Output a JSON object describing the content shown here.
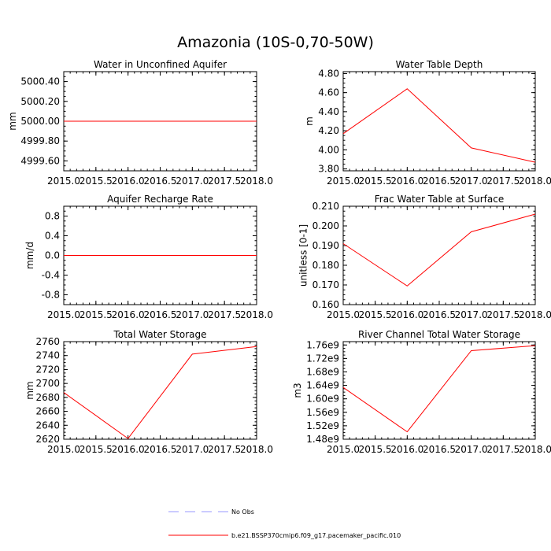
{
  "figure": {
    "title": "Amazonia (10S-0,70-50W)"
  },
  "legend": [
    {
      "label": "No Obs",
      "color": "#9999ff",
      "dash": true
    },
    {
      "label": "b.e21.BSSP370cmip6.f09_g17.pacemaker_pacific.010",
      "color": "#ff0000",
      "dash": false
    }
  ],
  "chart_data": [
    {
      "type": "line",
      "title": "Water in Unconfined Aquifer",
      "ylabel": "mm",
      "xlim": [
        2015.0,
        2018.0
      ],
      "ylim": [
        4999.5,
        5000.5
      ],
      "xticks": [
        "2015.0",
        "2015.5",
        "2016.0",
        "2016.5",
        "2017.0",
        "2017.5",
        "2018.0"
      ],
      "xtickvals": [
        2015.0,
        2015.5,
        2016.0,
        2016.5,
        2017.0,
        2017.5,
        2018.0
      ],
      "yticks": [
        "4999.60",
        "4999.80",
        "5000.00",
        "5000.20",
        "5000.40"
      ],
      "ytickvals": [
        4999.6,
        4999.8,
        5000.0,
        5000.2,
        5000.4
      ],
      "series": [
        {
          "x": [
            2015,
            2016,
            2017,
            2018
          ],
          "values": [
            5000.0,
            5000.0,
            5000.0,
            5000.0
          ],
          "color": "#ff0000"
        }
      ]
    },
    {
      "type": "line",
      "title": "Water Table Depth",
      "ylabel": "m",
      "xlim": [
        2015.0,
        2018.0
      ],
      "ylim": [
        3.78,
        4.82
      ],
      "xticks": [
        "2015.0",
        "2015.5",
        "2016.0",
        "2016.5",
        "2017.0",
        "2017.5",
        "2018.0"
      ],
      "xtickvals": [
        2015.0,
        2015.5,
        2016.0,
        2016.5,
        2017.0,
        2017.5,
        2018.0
      ],
      "yticks": [
        "3.80",
        "4.00",
        "4.20",
        "4.40",
        "4.60",
        "4.80"
      ],
      "ytickvals": [
        3.8,
        4.0,
        4.2,
        4.4,
        4.6,
        4.8
      ],
      "series": [
        {
          "x": [
            2015,
            2016,
            2017,
            2018
          ],
          "values": [
            4.17,
            4.64,
            4.02,
            3.87
          ],
          "color": "#ff0000"
        }
      ]
    },
    {
      "type": "line",
      "title": "Aquifer Recharge Rate",
      "ylabel": "mm/d",
      "xlim": [
        2015.0,
        2018.0
      ],
      "ylim": [
        -1.0,
        1.0
      ],
      "xticks": [
        "2015.0",
        "2015.5",
        "2016.0",
        "2016.5",
        "2017.0",
        "2017.5",
        "2018.0"
      ],
      "xtickvals": [
        2015.0,
        2015.5,
        2016.0,
        2016.5,
        2017.0,
        2017.5,
        2018.0
      ],
      "yticks": [
        "-0.8",
        "-0.4",
        "0.0",
        "0.4",
        "0.8"
      ],
      "ytickvals": [
        -0.8,
        -0.4,
        0.0,
        0.4,
        0.8
      ],
      "series": [
        {
          "x": [
            2015,
            2016,
            2017,
            2018
          ],
          "values": [
            0.0,
            0.0,
            0.0,
            0.0
          ],
          "color": "#ff0000"
        }
      ]
    },
    {
      "type": "line",
      "title": "Frac Water Table at Surface",
      "ylabel": "unitless [0-1]",
      "xlim": [
        2015.0,
        2018.0
      ],
      "ylim": [
        0.16,
        0.21
      ],
      "xticks": [
        "2015.0",
        "2015.5",
        "2016.0",
        "2016.5",
        "2017.0",
        "2017.5",
        "2018.0"
      ],
      "xtickvals": [
        2015.0,
        2015.5,
        2016.0,
        2016.5,
        2017.0,
        2017.5,
        2018.0
      ],
      "yticks": [
        "0.160",
        "0.170",
        "0.180",
        "0.190",
        "0.200",
        "0.210"
      ],
      "ytickvals": [
        0.16,
        0.17,
        0.18,
        0.19,
        0.2,
        0.21
      ],
      "series": [
        {
          "x": [
            2015,
            2016,
            2017,
            2018
          ],
          "values": [
            0.191,
            0.1695,
            0.197,
            0.206
          ],
          "color": "#ff0000"
        }
      ]
    },
    {
      "type": "line",
      "title": "Total Water Storage",
      "ylabel": "mm",
      "xlim": [
        2015.0,
        2018.0
      ],
      "ylim": [
        2620,
        2760
      ],
      "xticks": [
        "2015.0",
        "2015.5",
        "2016.0",
        "2016.5",
        "2017.0",
        "2017.5",
        "2018.0"
      ],
      "xtickvals": [
        2015.0,
        2015.5,
        2016.0,
        2016.5,
        2017.0,
        2017.5,
        2018.0
      ],
      "yticks": [
        "2620",
        "2640",
        "2660",
        "2680",
        "2700",
        "2720",
        "2740",
        "2760"
      ],
      "ytickvals": [
        2620,
        2640,
        2660,
        2680,
        2700,
        2720,
        2740,
        2760
      ],
      "series": [
        {
          "x": [
            2015,
            2016,
            2017,
            2018
          ],
          "values": [
            2687,
            2621,
            2742,
            2753
          ],
          "color": "#ff0000"
        }
      ]
    },
    {
      "type": "line",
      "title": "River Channel Total Water Storage",
      "ylabel": "m3",
      "xlim": [
        2015.0,
        2018.0
      ],
      "ylim": [
        1.48,
        1.77
      ],
      "xticks": [
        "2015.0",
        "2015.5",
        "2016.0",
        "2016.5",
        "2017.0",
        "2017.5",
        "2018.0"
      ],
      "xtickvals": [
        2015.0,
        2015.5,
        2016.0,
        2016.5,
        2017.0,
        2017.5,
        2018.0
      ],
      "yticks": [
        "1.48e9",
        "1.52e9",
        "1.56e9",
        "1.60e9",
        "1.64e9",
        "1.68e9",
        "1.72e9",
        "1.76e9"
      ],
      "ytickvals": [
        1.48,
        1.52,
        1.56,
        1.6,
        1.64,
        1.68,
        1.72,
        1.76
      ],
      "series": [
        {
          "x": [
            2015,
            2016,
            2017,
            2018
          ],
          "values": [
            1.634,
            1.502,
            1.743,
            1.758
          ],
          "color": "#ff0000"
        }
      ]
    }
  ]
}
